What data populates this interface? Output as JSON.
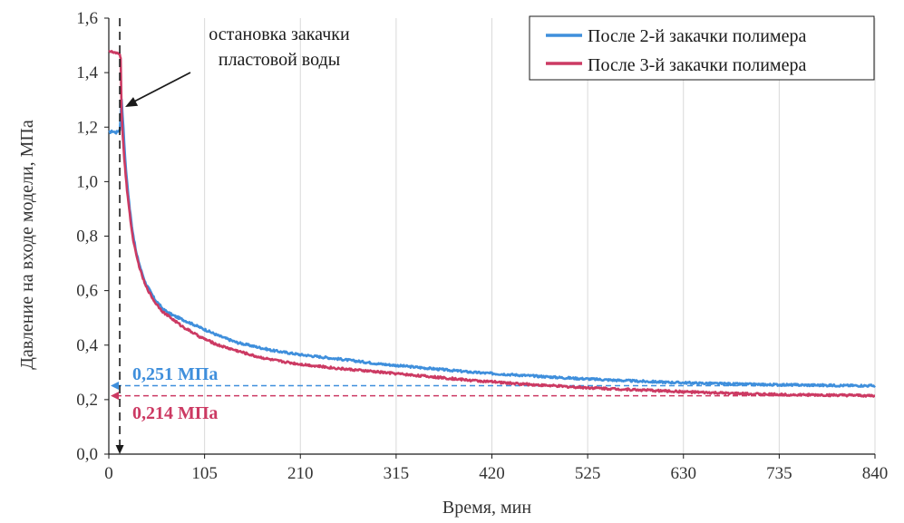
{
  "chart_data": {
    "type": "line",
    "xlabel": "Время, мин",
    "ylabel": "Давление на входе модели, МПа",
    "xlim": [
      0,
      840
    ],
    "ylim": [
      0.0,
      1.6
    ],
    "x_ticks": [
      0,
      105,
      210,
      315,
      420,
      525,
      630,
      735,
      840
    ],
    "x_tick_labels": [
      "0",
      "105",
      "210",
      "315",
      "420",
      "525",
      "630",
      "735",
      "840"
    ],
    "y_ticks": [
      0.0,
      0.2,
      0.4,
      0.6,
      0.8,
      1.0,
      1.2,
      1.4,
      1.6
    ],
    "y_tick_labels": [
      "0,0",
      "0,2",
      "0,4",
      "0,6",
      "0,8",
      "1,0",
      "1,2",
      "1,4",
      "1,6"
    ],
    "grid": "vertical",
    "legend_position": "top-right",
    "series": [
      {
        "name": "После 2-й закачки полимера",
        "color": "#3f8fdc",
        "x": [
          0,
          4,
          8,
          12,
          14,
          16,
          18,
          20,
          23,
          26,
          30,
          35,
          40,
          45,
          50,
          60,
          70,
          80,
          90,
          100,
          120,
          140,
          160,
          180,
          210,
          250,
          300,
          350,
          400,
          450,
          500,
          550,
          600,
          650,
          700,
          750,
          800,
          840
        ],
        "y": [
          1.18,
          1.185,
          1.18,
          1.19,
          1.3,
          1.2,
          1.08,
          1.0,
          0.9,
          0.82,
          0.74,
          0.68,
          0.63,
          0.6,
          0.57,
          0.53,
          0.51,
          0.495,
          0.48,
          0.465,
          0.435,
          0.41,
          0.395,
          0.38,
          0.365,
          0.35,
          0.33,
          0.315,
          0.3,
          0.29,
          0.28,
          0.272,
          0.265,
          0.26,
          0.256,
          0.254,
          0.252,
          0.251
        ]
      },
      {
        "name": "После 3-й закачки полимера",
        "color": "#cc3a63",
        "x": [
          0,
          4,
          8,
          12,
          13,
          14,
          15,
          17,
          20,
          23,
          26,
          30,
          35,
          40,
          45,
          50,
          60,
          70,
          80,
          90,
          100,
          120,
          140,
          160,
          180,
          210,
          250,
          300,
          350,
          400,
          450,
          500,
          550,
          600,
          650,
          700,
          750,
          800,
          840
        ],
        "y": [
          1.48,
          1.475,
          1.47,
          1.47,
          1.45,
          1.26,
          1.18,
          1.08,
          0.97,
          0.88,
          0.8,
          0.73,
          0.67,
          0.62,
          0.59,
          0.56,
          0.52,
          0.495,
          0.47,
          0.45,
          0.43,
          0.4,
          0.38,
          0.36,
          0.345,
          0.33,
          0.315,
          0.3,
          0.285,
          0.27,
          0.258,
          0.248,
          0.24,
          0.233,
          0.226,
          0.221,
          0.218,
          0.216,
          0.214
        ]
      }
    ],
    "reference_lines": [
      {
        "value": 0.251,
        "label": "0,251 МПа",
        "color": "#3f8fdc"
      },
      {
        "value": 0.214,
        "label": "0,214 МПа",
        "color": "#cc3a63"
      }
    ],
    "annotation": {
      "text_line1": "остановка закачки",
      "text_line2": "пластовой воды",
      "event_x": 12
    }
  }
}
